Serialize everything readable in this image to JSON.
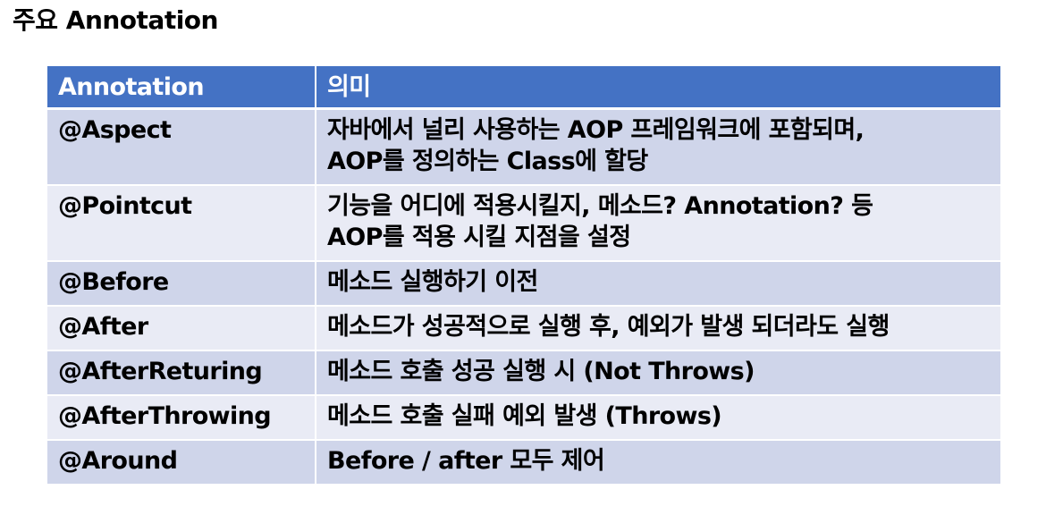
{
  "page": {
    "title": "주요 Annotation"
  },
  "table": {
    "headers": [
      "Annotation",
      "의미"
    ],
    "rows": [
      {
        "annotation": "@Aspect",
        "meaning": "자바에서 널리 사용하는 AOP 프레임워크에 포함되며,\nAOP를 정의하는 Class에 할당"
      },
      {
        "annotation": "@Pointcut",
        "meaning": "기능을 어디에 적용시킬지, 메소드? Annotation? 등\nAOP를 적용 시킬 지점을 설정"
      },
      {
        "annotation": "@Before",
        "meaning": "메소드 실행하기 이전"
      },
      {
        "annotation": "@After",
        "meaning": "메소드가 성공적으로 실행 후, 예외가 발생 되더라도 실행"
      },
      {
        "annotation": "@AfterReturing",
        "meaning": "메소드 호출 성공 실행 시 (Not Throws)"
      },
      {
        "annotation": "@AfterThrowing",
        "meaning": "메소드 호출 실패 예외 발생 (Throws)"
      },
      {
        "annotation": "@Around",
        "meaning": "Before / after 모두 제어"
      }
    ]
  },
  "colors": {
    "header_bg": "#4472c4",
    "row_odd_bg": "#cfd5ea",
    "row_even_bg": "#e9ebf5"
  }
}
